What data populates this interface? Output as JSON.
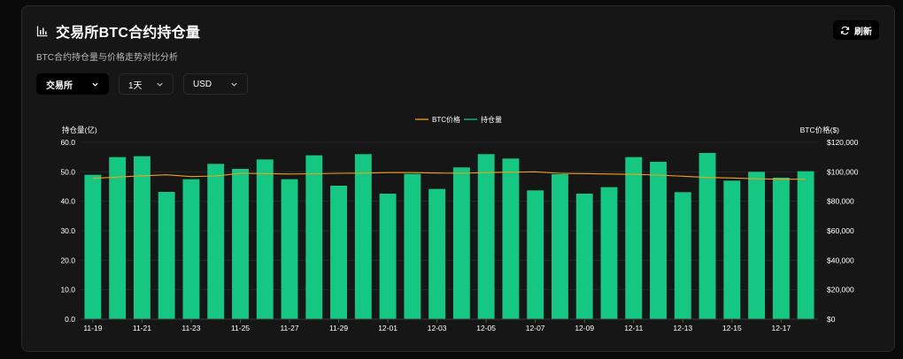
{
  "header": {
    "title": "交易所BTC合约持仓量",
    "subtitle": "BTC合约持仓量与价格走势对比分析",
    "refresh_label": "刷新"
  },
  "filters": {
    "exchange": "交易所",
    "period": "1天",
    "currency": "USD"
  },
  "colors": {
    "bar": "#16c784",
    "price_line": "#f0a020",
    "background": "#161616"
  },
  "chart_data": {
    "type": "bar",
    "left_axis_label": "持仓量(亿)",
    "right_axis_label": "BTC价格($)",
    "legend": [
      "BTC价格",
      "持仓量"
    ],
    "left_ticks": [
      "0.0",
      "10.0",
      "20.0",
      "30.0",
      "40.0",
      "50.0",
      "60.0"
    ],
    "right_ticks": [
      "$0",
      "$20,000",
      "$40,000",
      "$60,000",
      "$80,000",
      "$100,000",
      "$120,000"
    ],
    "ylim_left": [
      0,
      60
    ],
    "ylim_right": [
      0,
      120000
    ],
    "x_tick_labels": [
      "11-19",
      "11-21",
      "11-23",
      "11-25",
      "11-27",
      "11-29",
      "12-01",
      "12-03",
      "12-05",
      "12-07",
      "12-09",
      "12-11",
      "12-13",
      "12-15",
      "12-17"
    ],
    "categories": [
      "11-19",
      "11-20",
      "11-21",
      "11-22",
      "11-23",
      "11-24",
      "11-25",
      "11-26",
      "11-27",
      "11-28",
      "11-29",
      "11-30",
      "12-01",
      "12-02",
      "12-03",
      "12-04",
      "12-05",
      "12-06",
      "12-07",
      "12-08",
      "12-09",
      "12-10",
      "12-11",
      "12-12",
      "12-13",
      "12-14",
      "12-15",
      "12-16",
      "12-17",
      "12-18"
    ],
    "series": [
      {
        "name": "持仓量",
        "type": "bar",
        "axis": "left",
        "values": [
          49.0,
          55.0,
          55.3,
          43.2,
          47.5,
          52.7,
          51.0,
          54.2,
          47.5,
          55.6,
          45.3,
          56.0,
          42.6,
          49.3,
          44.2,
          51.5,
          56.0,
          54.5,
          43.7,
          49.2,
          42.6,
          44.8,
          55.0,
          53.4,
          43.1,
          56.4,
          47.0,
          50.0,
          48.0,
          50.2
        ]
      },
      {
        "name": "BTC价格",
        "type": "line",
        "axis": "right",
        "values": [
          95500,
          96500,
          97300,
          98000,
          96800,
          97200,
          99000,
          98800,
          98500,
          98700,
          99000,
          99100,
          99500,
          99500,
          99200,
          99000,
          99500,
          99800,
          100000,
          99000,
          98800,
          98500,
          98300,
          97800,
          97000,
          96200,
          95800,
          95300,
          95000,
          95100
        ]
      }
    ]
  }
}
